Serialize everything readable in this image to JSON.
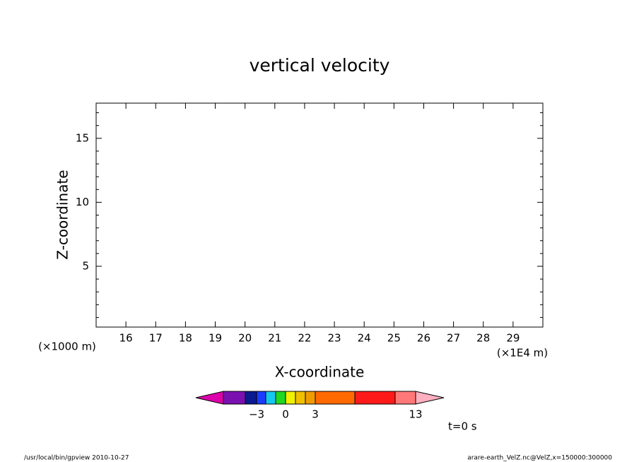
{
  "chart_data": {
    "type": "empty",
    "title": "vertical velocity",
    "x_label": "X-coordinate",
    "y_label": "Z-coordinate",
    "x_unit_note": "(×1E4 m)",
    "y_unit_note": "(×1000 m)",
    "xlim": [
      15,
      30
    ],
    "xticks": [
      16,
      17,
      18,
      19,
      20,
      21,
      22,
      23,
      24,
      25,
      26,
      27,
      28,
      29
    ],
    "ylim": [
      0.25,
      17.75
    ],
    "yticks": [
      5,
      10,
      15
    ],
    "yticks_minor": [
      1,
      2,
      3,
      4,
      6,
      7,
      8,
      9,
      11,
      12,
      13,
      14,
      16,
      17
    ],
    "colorbar": {
      "colors": [
        "#dd00aa",
        "#7a10b0",
        "#0a1a8f",
        "#1a3cff",
        "#15c8f0",
        "#20d820",
        "#f0f000",
        "#f0c000",
        "#f09c00",
        "#ff6a00",
        "#ff1a1a",
        "#ff7878",
        "#ffb0c0"
      ],
      "labels": [
        {
          "value": -3,
          "label": "−3"
        },
        0,
        3,
        13
      ]
    },
    "time_note": "t=0 s",
    "footer_left": "/usr/local/bin/gpview   2010-10-27",
    "footer_right": "arare-earth_VelZ.nc@VelZ,x=150000:300000"
  }
}
